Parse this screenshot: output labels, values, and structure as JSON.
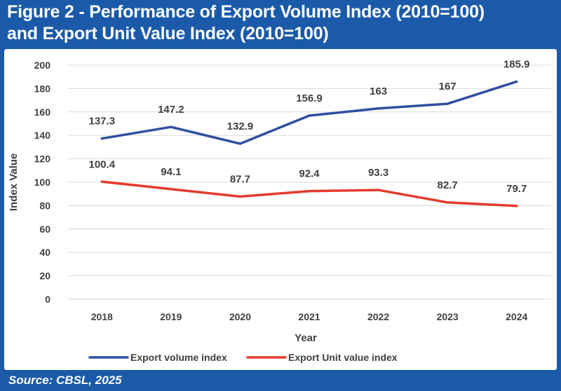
{
  "figure": {
    "title_line1": "Figure 2 - Performance of Export Volume Index (2010=100)",
    "title_line2": "and Export Unit Value Index (2010=100)",
    "source": "Source: CBSL, 2025"
  },
  "colors": {
    "frame": "#1b5aa8",
    "series_volume": "#2f4fa0",
    "series_unit_value": "#e53b2c",
    "axis_text": "#404040",
    "gridline": "#d9d9d9"
  },
  "chart_data": {
    "type": "line",
    "title": "",
    "xlabel": "Year",
    "ylabel": "Index Value",
    "categories": [
      "2018",
      "2019",
      "2020",
      "2021",
      "2022",
      "2023",
      "2024"
    ],
    "ylim": [
      0,
      200
    ],
    "yticks": [
      0,
      20,
      40,
      60,
      80,
      100,
      120,
      140,
      160,
      180,
      200
    ],
    "grid": true,
    "legend_position": "bottom",
    "series": [
      {
        "name": "Export volume index",
        "values": [
          137.3,
          147.2,
          132.9,
          156.9,
          163,
          167,
          185.9
        ],
        "labels": [
          "137.3",
          "147.2",
          "132.9",
          "156.9",
          "163",
          "167",
          "185.9"
        ]
      },
      {
        "name": "Export Unit value index",
        "values": [
          100.4,
          94.1,
          87.7,
          92.4,
          93.3,
          82.7,
          79.7
        ],
        "labels": [
          "100.4",
          "94.1",
          "87.7",
          "92.4",
          "93.3",
          "82.7",
          "79.7"
        ]
      }
    ]
  }
}
